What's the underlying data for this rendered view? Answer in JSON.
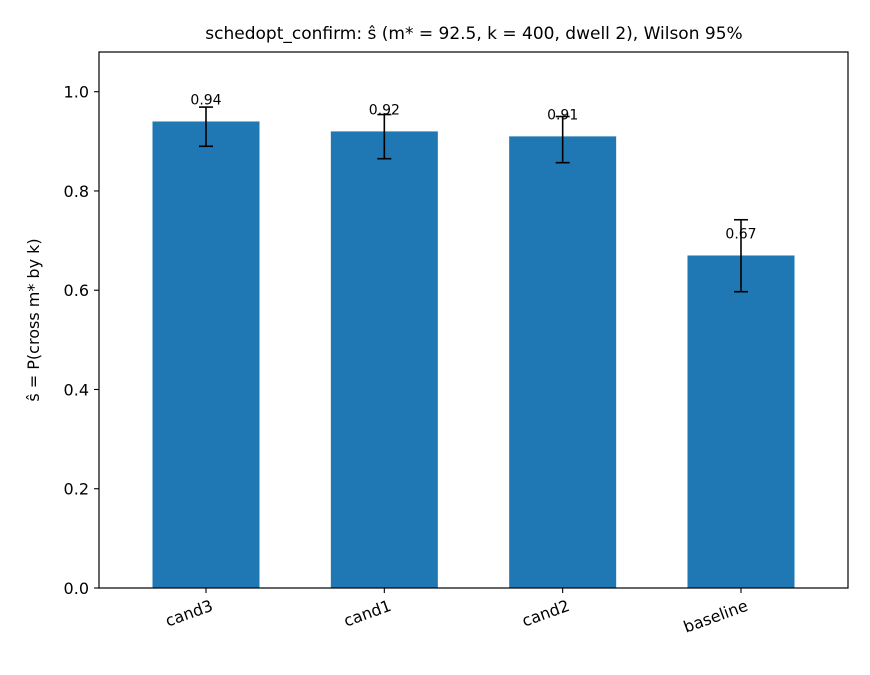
{
  "chart_data": {
    "type": "bar",
    "title": "schedopt_confirm: ŝ (m* = 92.5, k = 400, dwell 2), Wilson 95%",
    "xlabel": "",
    "ylabel": "ŝ = P(cross m* by k)",
    "categories": [
      "cand3",
      "cand1",
      "cand2",
      "baseline"
    ],
    "values": [
      0.94,
      0.92,
      0.91,
      0.67
    ],
    "value_labels": [
      "0.94",
      "0.92",
      "0.91",
      "0.67"
    ],
    "error_low": [
      0.89,
      0.865,
      0.857,
      0.597
    ],
    "error_high": [
      0.969,
      0.954,
      0.95,
      0.742
    ],
    "ylim": [
      0,
      1.08
    ],
    "yticks": [
      0.0,
      0.2,
      0.4,
      0.6,
      0.8,
      1.0
    ],
    "ytick_labels": [
      "0.0",
      "0.2",
      "0.4",
      "0.6",
      "0.8",
      "1.0"
    ],
    "grid": false,
    "bar_color": "#1f77b4",
    "errorbar_color": "#000000"
  }
}
